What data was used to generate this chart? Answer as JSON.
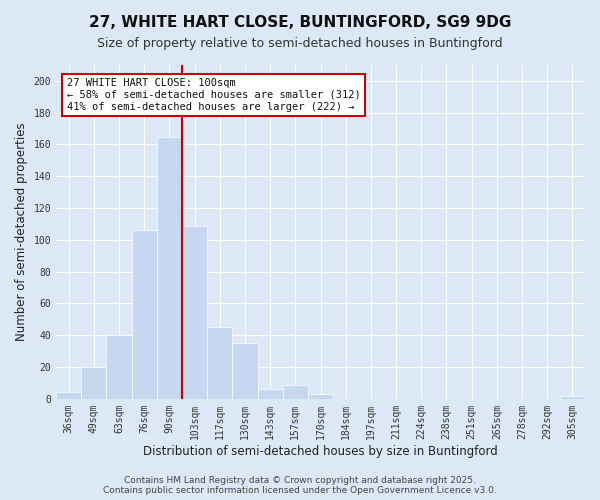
{
  "title": "27, WHITE HART CLOSE, BUNTINGFORD, SG9 9DG",
  "subtitle": "Size of property relative to semi-detached houses in Buntingford",
  "xlabel": "Distribution of semi-detached houses by size in Buntingford",
  "ylabel": "Number of semi-detached properties",
  "bar_labels": [
    "36sqm",
    "49sqm",
    "63sqm",
    "76sqm",
    "90sqm",
    "103sqm",
    "117sqm",
    "130sqm",
    "143sqm",
    "157sqm",
    "170sqm",
    "184sqm",
    "197sqm",
    "211sqm",
    "224sqm",
    "238sqm",
    "251sqm",
    "265sqm",
    "278sqm",
    "292sqm",
    "305sqm"
  ],
  "bar_values": [
    4,
    20,
    40,
    106,
    165,
    109,
    45,
    35,
    6,
    9,
    3,
    0,
    0,
    0,
    0,
    0,
    0,
    0,
    0,
    0,
    2
  ],
  "bar_color": "#c5d8f0",
  "vline_color": "#cc0000",
  "annotation_title": "27 WHITE HART CLOSE: 100sqm",
  "annotation_line1": "← 58% of semi-detached houses are smaller (312)",
  "annotation_line2": "41% of semi-detached houses are larger (222) →",
  "annotation_box_facecolor": "#ffffff",
  "annotation_box_edgecolor": "#cc0000",
  "ylim": [
    0,
    210
  ],
  "yticks": [
    0,
    20,
    40,
    60,
    80,
    100,
    120,
    140,
    160,
    180,
    200
  ],
  "background_color": "#dce8f5",
  "footer_line1": "Contains HM Land Registry data © Crown copyright and database right 2025.",
  "footer_line2": "Contains public sector information licensed under the Open Government Licence v3.0.",
  "title_fontsize": 11,
  "subtitle_fontsize": 9,
  "axis_label_fontsize": 8.5,
  "tick_fontsize": 7,
  "annotation_fontsize": 7.5,
  "footer_fontsize": 6.5
}
